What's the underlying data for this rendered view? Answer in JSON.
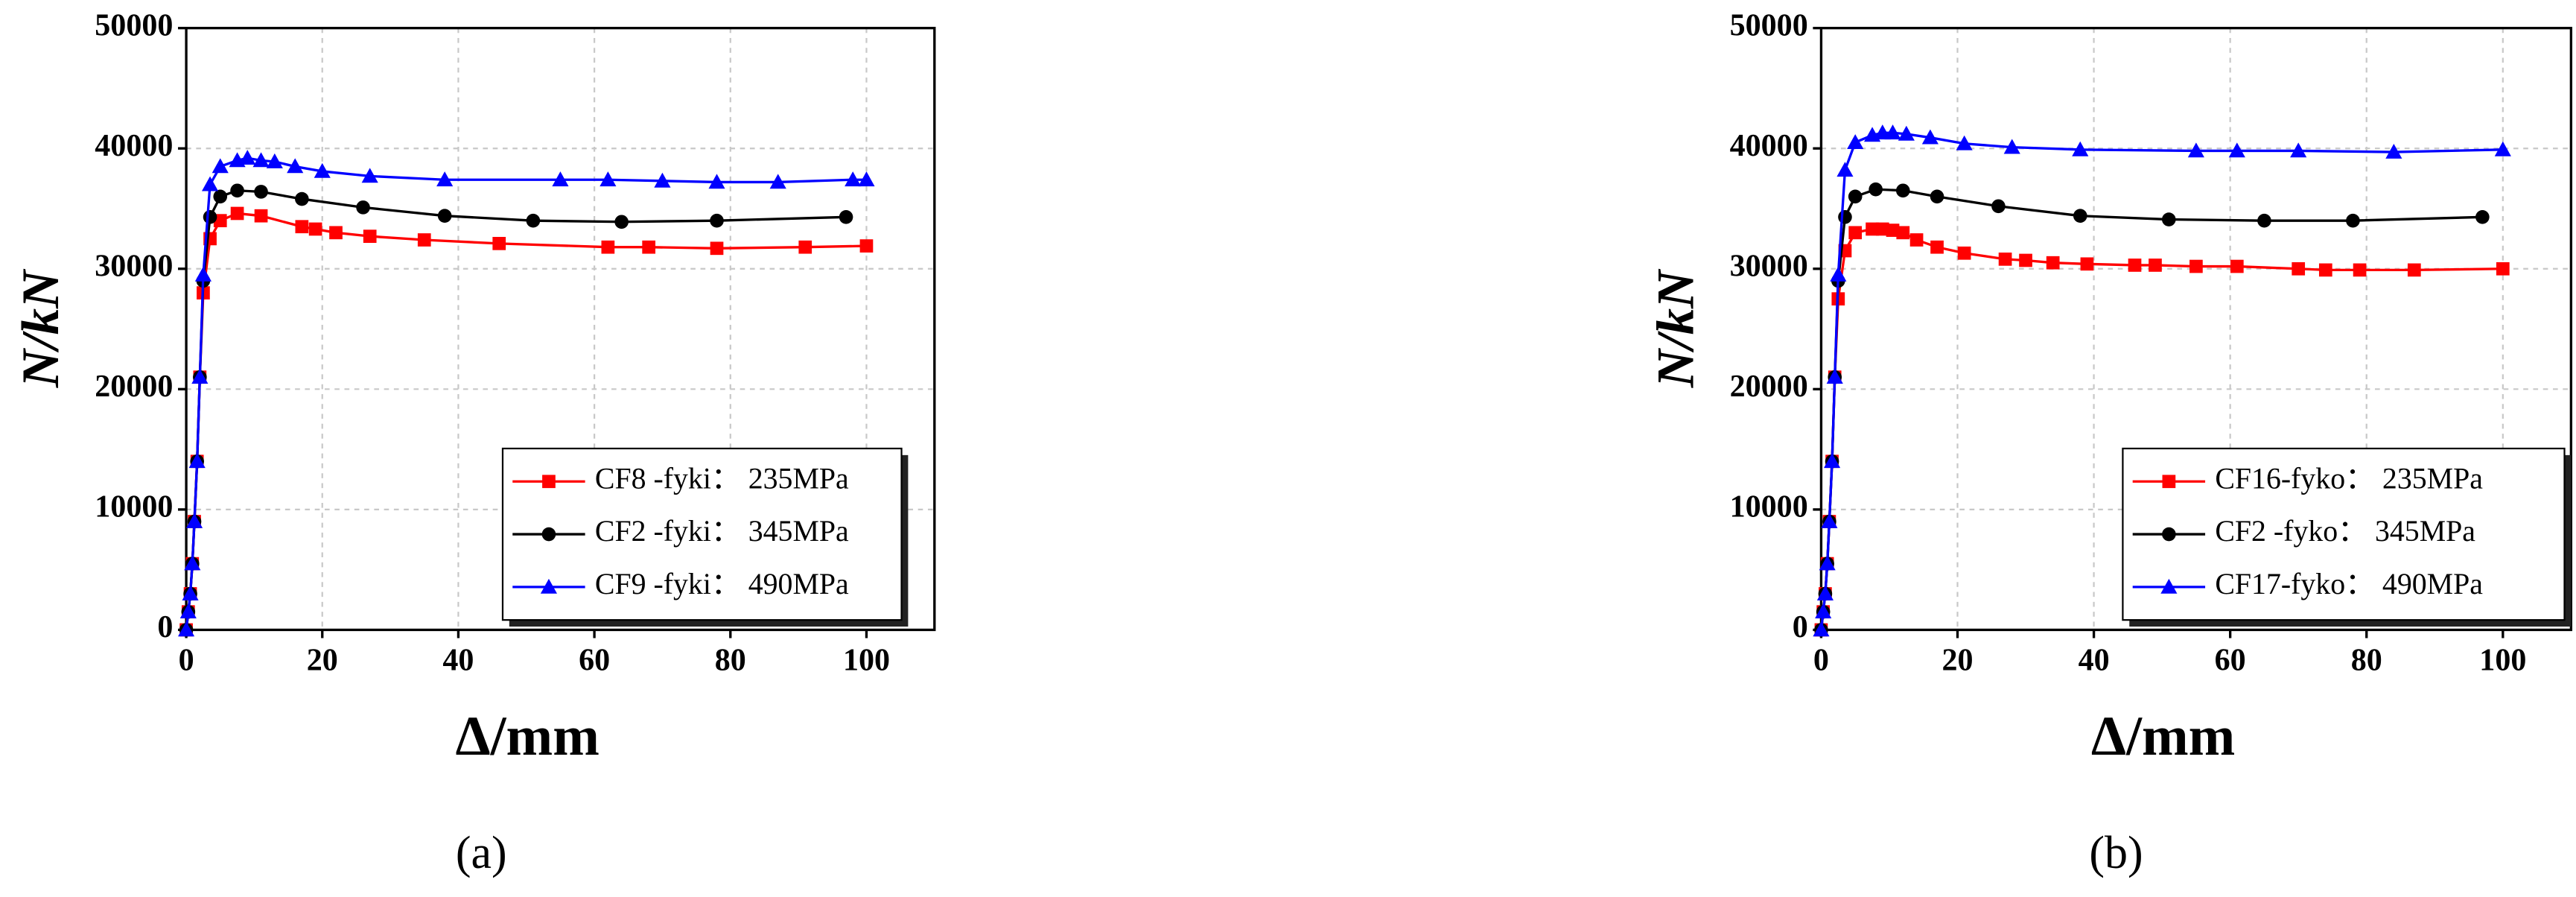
{
  "chart_data": [
    {
      "type": "line",
      "label": "(a)",
      "xlabel": "Δ/mm",
      "ylabel": "N/kN",
      "xlim": [
        0,
        110
      ],
      "ylim": [
        0,
        50000
      ],
      "xticks": [
        0,
        20,
        40,
        60,
        80,
        100
      ],
      "yticks": [
        0,
        10000,
        20000,
        30000,
        40000,
        50000
      ],
      "grid": true,
      "legend": "lower right",
      "series": [
        {
          "name": "CF8 -fyki：  235MPa",
          "color": "#ff0000",
          "marker": "square",
          "x": [
            0,
            0.3,
            0.6,
            0.9,
            1.2,
            1.6,
            2,
            2.5,
            3.5,
            5,
            7.5,
            11,
            17,
            19,
            22,
            27,
            35,
            46,
            62,
            68,
            78,
            91,
            100
          ],
          "values": [
            0,
            1500,
            3000,
            5500,
            9000,
            14000,
            21000,
            28000,
            32500,
            34000,
            34600,
            34400,
            33500,
            33300,
            33000,
            32700,
            32400,
            32100,
            31800,
            31800,
            31700,
            31800,
            31900
          ]
        },
        {
          "name": "CF2 -fyki：  345MPa",
          "color": "#000000",
          "marker": "circle",
          "x": [
            0,
            0.3,
            0.6,
            0.9,
            1.2,
            1.6,
            2,
            2.5,
            3.5,
            5,
            7.5,
            11,
            17,
            26,
            38,
            51,
            64,
            78,
            97
          ],
          "values": [
            0,
            1500,
            3000,
            5500,
            9000,
            14000,
            21000,
            29000,
            34300,
            36000,
            36500,
            36400,
            35800,
            35100,
            34400,
            34000,
            33900,
            34000,
            34300
          ]
        },
        {
          "name": "CF9 -fyki：  490MPa",
          "color": "#0000ff",
          "marker": "triangle",
          "x": [
            0,
            0.3,
            0.6,
            0.9,
            1.2,
            1.6,
            2,
            2.5,
            3.5,
            5,
            7.5,
            9,
            11,
            13,
            16,
            20,
            27,
            38,
            55,
            62,
            70,
            78,
            87,
            98,
            100
          ],
          "values": [
            0,
            1500,
            3000,
            5500,
            9000,
            14000,
            21000,
            29500,
            37000,
            38500,
            39000,
            39200,
            39000,
            38900,
            38500,
            38100,
            37700,
            37400,
            37400,
            37400,
            37300,
            37200,
            37200,
            37400,
            37400
          ]
        }
      ]
    },
    {
      "type": "line",
      "label": "(b)",
      "xlabel": "Δ/mm",
      "ylabel": "N/kN",
      "xlim": [
        0,
        110
      ],
      "ylim": [
        0,
        50000
      ],
      "xticks": [
        0,
        20,
        40,
        60,
        80,
        100
      ],
      "yticks": [
        0,
        10000,
        20000,
        30000,
        40000,
        50000
      ],
      "grid": true,
      "legend": "lower right",
      "series": [
        {
          "name": "CF16-fyko：  235MPa",
          "color": "#ff0000",
          "marker": "square",
          "x": [
            0,
            0.3,
            0.6,
            0.9,
            1.2,
            1.6,
            2,
            2.5,
            3.5,
            5,
            7.5,
            9,
            10.5,
            12,
            14,
            17,
            21,
            27,
            30,
            34,
            39,
            46,
            49,
            55,
            61,
            70,
            74,
            79,
            87,
            100
          ],
          "values": [
            0,
            1500,
            3000,
            5500,
            9000,
            14000,
            21000,
            27500,
            31500,
            33000,
            33300,
            33300,
            33200,
            33000,
            32400,
            31800,
            31300,
            30800,
            30700,
            30500,
            30400,
            30300,
            30300,
            30200,
            30200,
            30000,
            29900,
            29900,
            29900,
            30000
          ]
        },
        {
          "name": "CF2  -fyko：  345MPa",
          "color": "#000000",
          "marker": "circle",
          "x": [
            0,
            0.3,
            0.6,
            0.9,
            1.2,
            1.6,
            2,
            2.5,
            3.5,
            5,
            8,
            12,
            17,
            26,
            38,
            51,
            65,
            78,
            97
          ],
          "values": [
            0,
            1500,
            3000,
            5500,
            9000,
            14000,
            21000,
            29000,
            34300,
            36000,
            36600,
            36500,
            36000,
            35200,
            34400,
            34100,
            34000,
            34000,
            34300
          ]
        },
        {
          "name": "CF17-fyko：  490MPa",
          "color": "#0000ff",
          "marker": "triangle",
          "x": [
            0,
            0.3,
            0.6,
            0.9,
            1.2,
            1.6,
            2,
            2.5,
            3.5,
            5,
            7.5,
            9,
            10.5,
            12.5,
            16,
            21,
            28,
            38,
            55,
            61,
            70,
            84,
            100
          ],
          "values": [
            0,
            1500,
            3000,
            5500,
            9000,
            14000,
            21000,
            29500,
            38200,
            40500,
            41100,
            41300,
            41300,
            41200,
            40900,
            40400,
            40100,
            39900,
            39800,
            39800,
            39800,
            39700,
            39900
          ]
        }
      ]
    }
  ]
}
